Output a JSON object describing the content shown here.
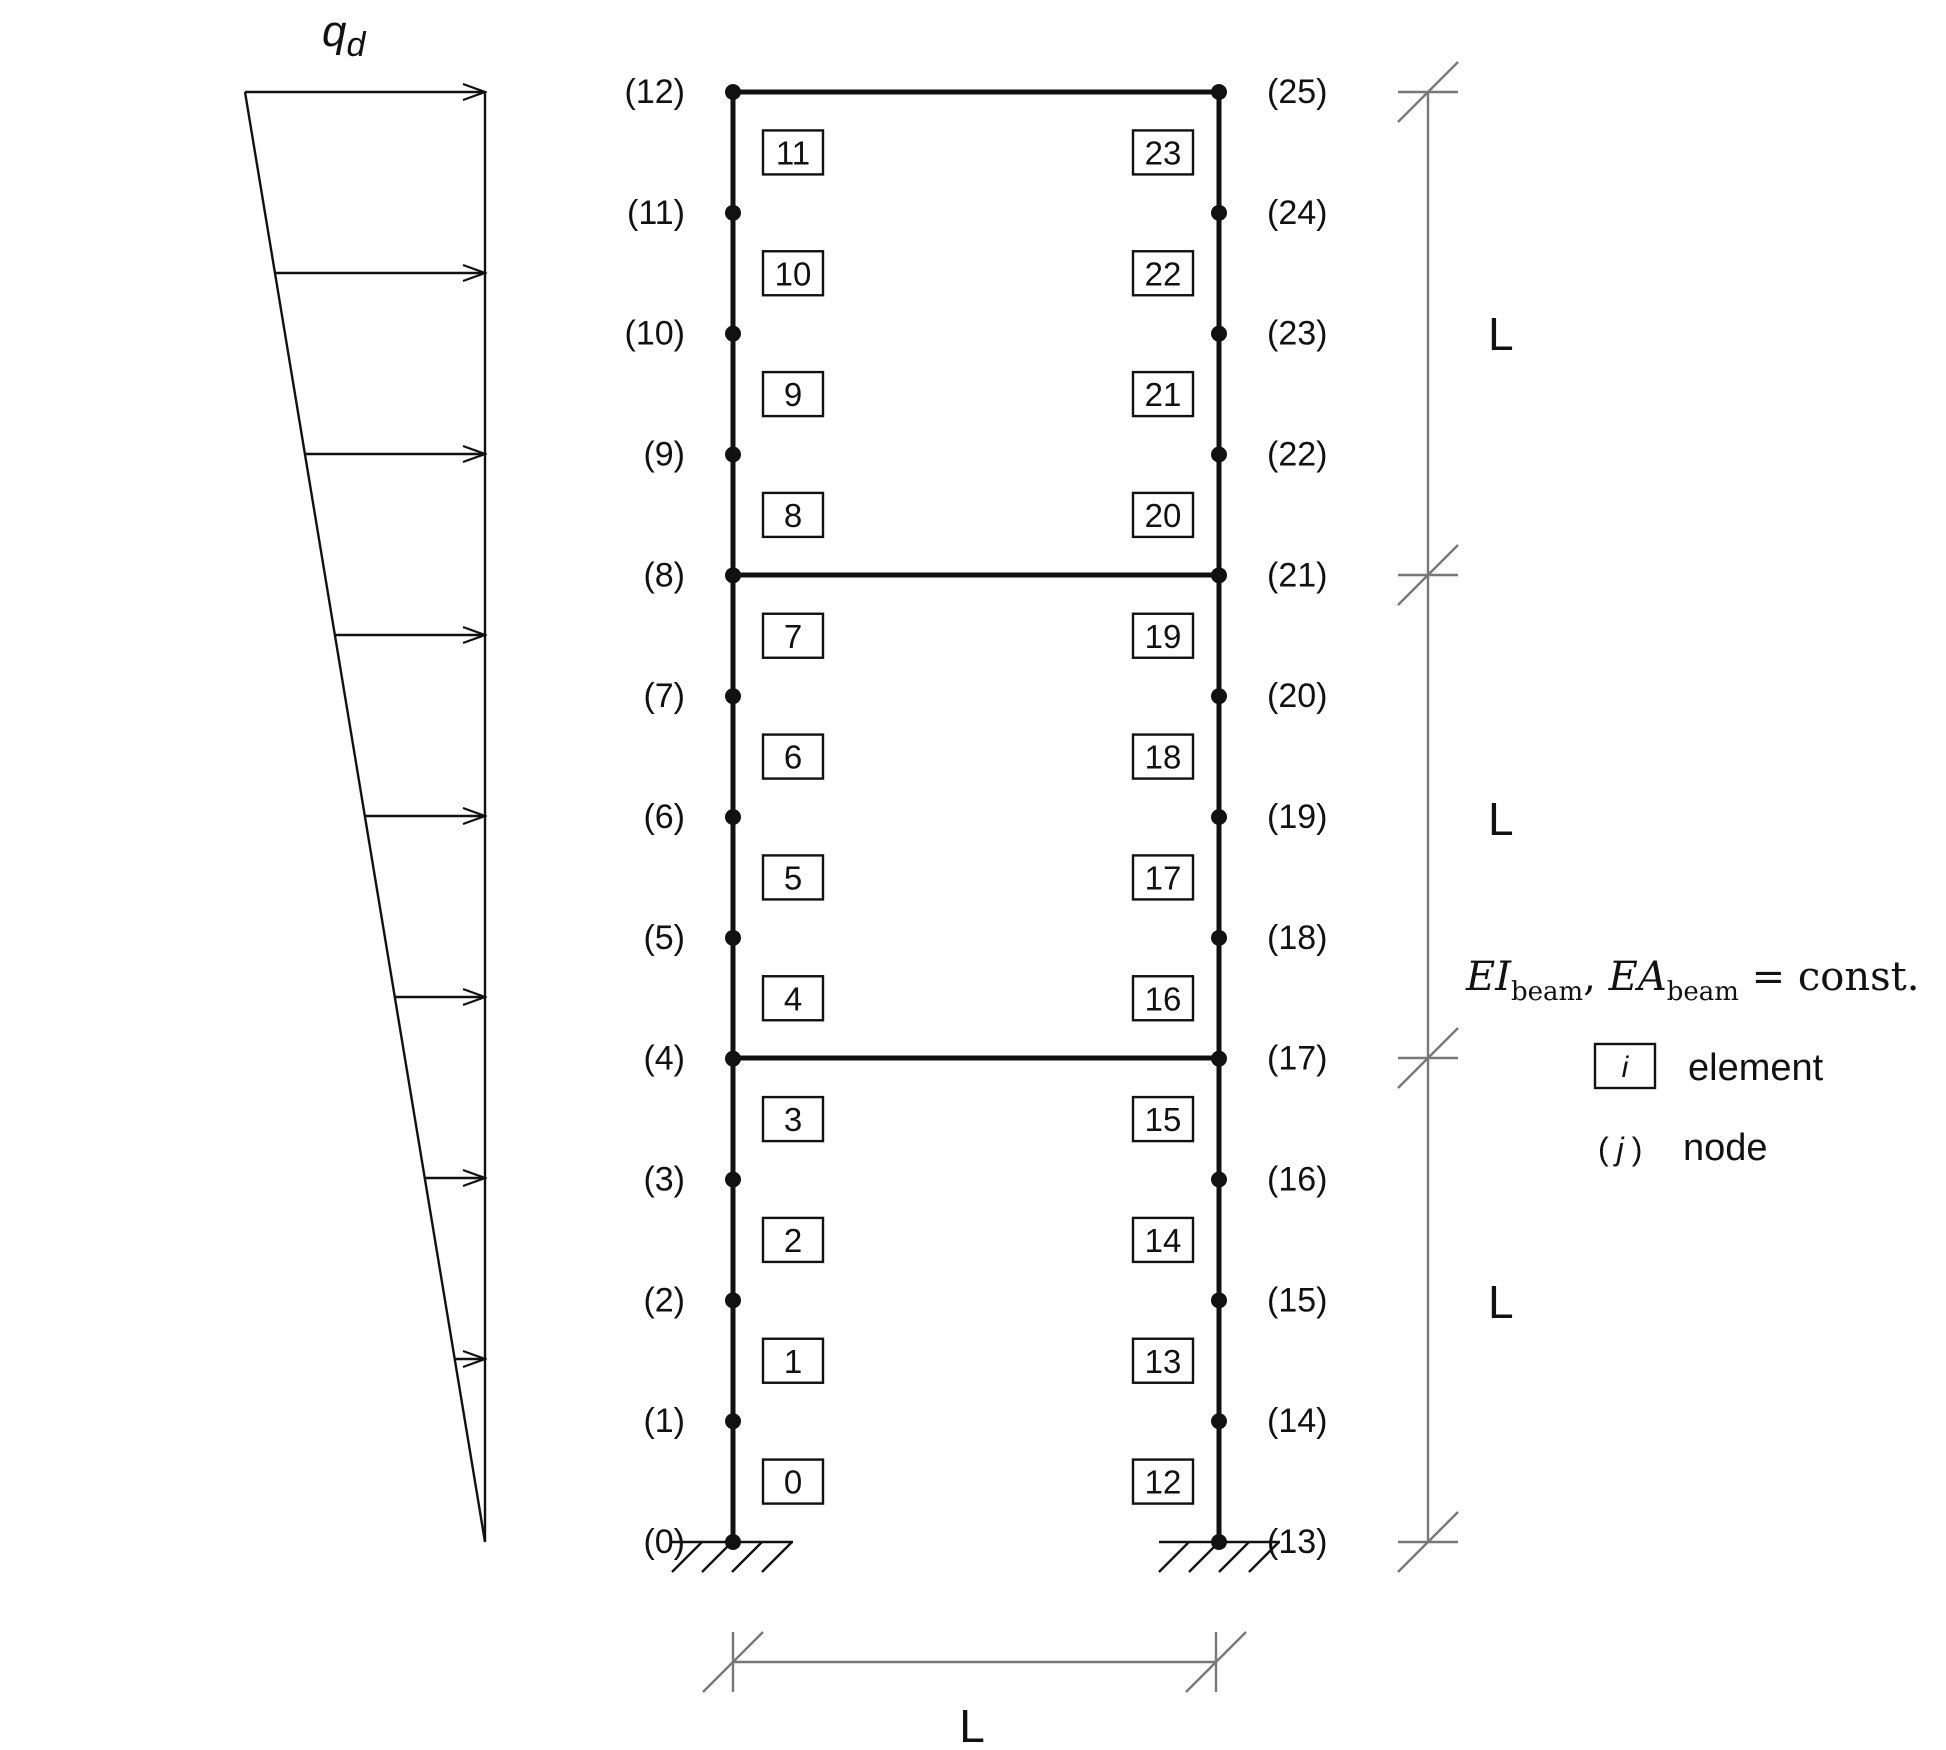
{
  "load": {
    "label_main": "q",
    "label_sub": "d"
  },
  "left_column": {
    "nodes": [
      "(0)",
      "(1)",
      "(2)",
      "(3)",
      "(4)",
      "(5)",
      "(6)",
      "(7)",
      "(8)",
      "(9)",
      "(10)",
      "(11)",
      "(12)"
    ],
    "elements": [
      "0",
      "1",
      "2",
      "3",
      "4",
      "5",
      "6",
      "7",
      "8",
      "9",
      "10",
      "11"
    ]
  },
  "right_column": {
    "nodes": [
      "(13)",
      "(14)",
      "(15)",
      "(16)",
      "(17)",
      "(18)",
      "(19)",
      "(20)",
      "(21)",
      "(22)",
      "(23)",
      "(24)",
      "(25)"
    ],
    "elements": [
      "12",
      "13",
      "14",
      "15",
      "16",
      "17",
      "18",
      "19",
      "20",
      "21",
      "22",
      "23"
    ]
  },
  "dimensions": {
    "story_1": "L",
    "story_2": "L",
    "story_3": "L",
    "span": "L"
  },
  "properties": {
    "ei": "EI",
    "ei_sub": "beam",
    "sep": ", ",
    "ea": "EA",
    "ea_sub": "beam",
    "rest": " = const."
  },
  "legend": {
    "element_symbol": "i",
    "element_label": "element",
    "node_open": "(",
    "node_symbol": "j",
    "node_close": ")",
    "node_label": "node"
  }
}
